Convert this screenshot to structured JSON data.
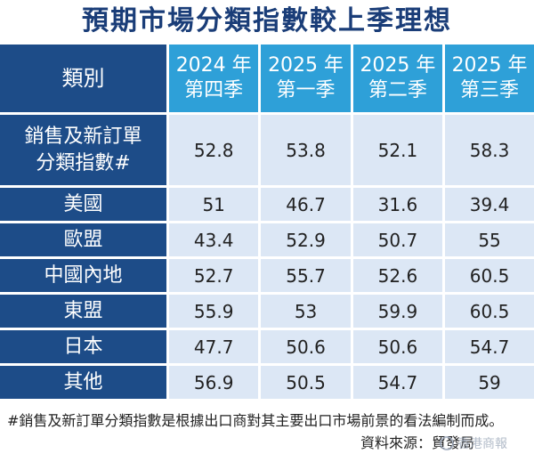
{
  "title": "預期市場分類指數較上季理想",
  "chart_data": {
    "type": "table",
    "columns": [
      {
        "line1": "2024 年",
        "line2": "第四季"
      },
      {
        "line1": "2025 年",
        "line2": "第一季"
      },
      {
        "line1": "2025 年",
        "line2": "第二季"
      },
      {
        "line1": "2025 年",
        "line2": "第三季"
      }
    ],
    "category_header": "類別",
    "rows": [
      {
        "label": "銷售及新訂單",
        "label2": "分類指數#",
        "values": [
          "52.8",
          "53.8",
          "52.1",
          "58.3"
        ]
      },
      {
        "label": "美國",
        "values": [
          "51",
          "46.7",
          "31.6",
          "39.4"
        ]
      },
      {
        "label": "歐盟",
        "values": [
          "43.4",
          "52.9",
          "50.7",
          "55"
        ]
      },
      {
        "label": "中國內地",
        "values": [
          "52.7",
          "55.7",
          "52.6",
          "60.5"
        ]
      },
      {
        "label": "東盟",
        "values": [
          "55.9",
          "53",
          "59.9",
          "60.5"
        ]
      },
      {
        "label": "日本",
        "values": [
          "47.7",
          "50.6",
          "50.6",
          "54.7"
        ]
      },
      {
        "label": "其他",
        "values": [
          "56.9",
          "50.5",
          "54.7",
          "59"
        ]
      }
    ]
  },
  "footnote": "#銷售及新訂單分類指數是根據出口商對其主要出口市場前景的看法編制而成。",
  "source": "資料來源：貿發局",
  "watermark": "香港商報",
  "colors": {
    "title": "#1a3d78",
    "header_dark": "#1d4c88",
    "header_light": "#2ea0d8",
    "cell": "#dce7f5"
  }
}
